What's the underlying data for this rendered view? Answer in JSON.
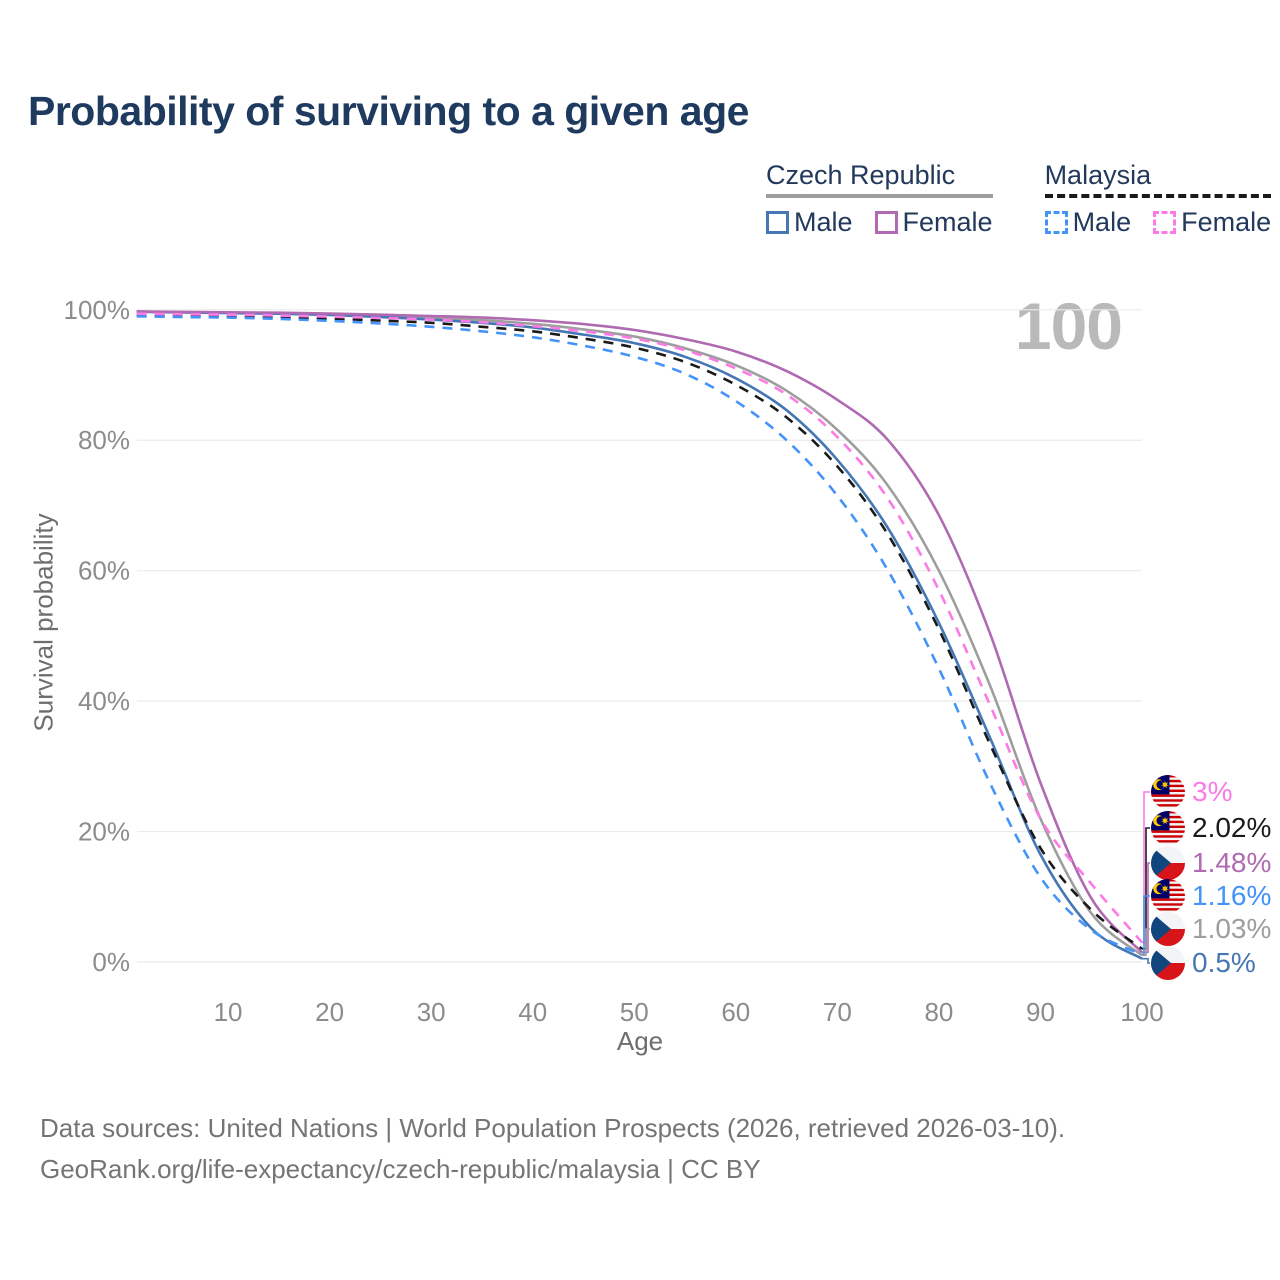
{
  "page": {
    "title": "Probability of surviving to a given age",
    "title_color": "#1e3a5f"
  },
  "legend": {
    "groups": [
      {
        "label": "Czech Republic",
        "series_id": "cz_all",
        "items": [
          {
            "label": "Male",
            "series_id": "cz_male"
          },
          {
            "label": "Female",
            "series_id": "cz_female"
          }
        ]
      },
      {
        "label": "Malaysia",
        "series_id": "my_all",
        "items": [
          {
            "label": "Male",
            "series_id": "my_male"
          },
          {
            "label": "Female",
            "series_id": "my_female"
          }
        ]
      }
    ]
  },
  "chart_data": {
    "type": "line",
    "title": "Probability of surviving to a given age",
    "xlabel": "Age",
    "ylabel": "Survival probability",
    "xlim": [
      0,
      100
    ],
    "ylim": [
      0,
      100
    ],
    "grid": "horizontal",
    "legend_position": "top-right",
    "watermark_age": "100",
    "x_ticks": [
      {
        "v": 10,
        "label": "10"
      },
      {
        "v": 20,
        "label": "20"
      },
      {
        "v": 30,
        "label": "30"
      },
      {
        "v": 40,
        "label": "40"
      },
      {
        "v": 50,
        "label": "50"
      },
      {
        "v": 60,
        "label": "60"
      },
      {
        "v": 70,
        "label": "70"
      },
      {
        "v": 80,
        "label": "80"
      },
      {
        "v": 90,
        "label": "90"
      },
      {
        "v": 100,
        "label": "100"
      }
    ],
    "y_ticks": [
      {
        "v": 0,
        "label": "0%"
      },
      {
        "v": 20,
        "label": "20%"
      },
      {
        "v": 40,
        "label": "40%"
      },
      {
        "v": 60,
        "label": "60%"
      },
      {
        "v": 80,
        "label": "80%"
      },
      {
        "v": 100,
        "label": "100%"
      }
    ],
    "x": [
      1,
      5,
      10,
      15,
      20,
      25,
      30,
      35,
      40,
      45,
      50,
      55,
      60,
      65,
      70,
      75,
      80,
      85,
      90,
      95,
      100
    ],
    "series": [
      {
        "id": "cz_all",
        "name": "Czech Republic Both sexes",
        "country": "Czech Republic",
        "sex": "all",
        "color": "#9e9e9e",
        "dash": "solid",
        "values": [
          99.72,
          99.64,
          99.56,
          99.48,
          99.3,
          99.05,
          98.75,
          98.4,
          97.85,
          97.0,
          95.9,
          94.1,
          91.5,
          87.6,
          81.6,
          73.0,
          60.0,
          42.5,
          22.0,
          7.5,
          1.03
        ]
      },
      {
        "id": "cz_male",
        "name": "Czech Republic Male",
        "country": "Czech Republic",
        "sex": "male",
        "color": "#4577b4",
        "dash": "solid",
        "values": [
          99.7,
          99.6,
          99.5,
          99.4,
          99.2,
          98.9,
          98.5,
          98.0,
          97.3,
          96.2,
          94.9,
          92.8,
          89.5,
          84.6,
          77.0,
          66.5,
          52.0,
          34.5,
          16.5,
          5.2,
          0.5
        ]
      },
      {
        "id": "cz_female",
        "name": "Czech Republic Female",
        "country": "Czech Republic",
        "sex": "female",
        "color": "#b06ab2",
        "dash": "solid",
        "values": [
          99.75,
          99.68,
          99.62,
          99.55,
          99.42,
          99.25,
          99.05,
          98.8,
          98.4,
          97.8,
          96.9,
          95.5,
          93.6,
          90.6,
          86.2,
          80.0,
          68.5,
          50.5,
          27.5,
          9.8,
          1.48
        ]
      },
      {
        "id": "my_all",
        "name": "Malaysia Both sexes",
        "country": "Malaysia",
        "sex": "all",
        "color": "#1a1a1a",
        "dash": "dashed",
        "values": [
          99.2,
          99.1,
          99.0,
          98.85,
          98.65,
          98.35,
          98.0,
          97.4,
          96.7,
          95.6,
          94.2,
          92.0,
          88.5,
          83.5,
          76.0,
          65.5,
          51.0,
          33.5,
          17.5,
          8.0,
          2.02
        ]
      },
      {
        "id": "my_male",
        "name": "Malaysia Male",
        "country": "Malaysia",
        "sex": "male",
        "color": "#4493f8",
        "dash": "dashed",
        "values": [
          99.0,
          98.9,
          98.8,
          98.6,
          98.3,
          97.9,
          97.4,
          96.7,
          95.8,
          94.5,
          92.8,
          90.2,
          86.0,
          80.0,
          71.5,
          60.0,
          45.0,
          27.5,
          13.0,
          4.9,
          1.16
        ]
      },
      {
        "id": "my_female",
        "name": "Malaysia Female",
        "country": "Malaysia",
        "sex": "female",
        "color": "#fb7ae6",
        "dash": "dashed",
        "values": [
          99.4,
          99.32,
          99.25,
          99.12,
          98.95,
          98.75,
          98.5,
          98.1,
          97.5,
          96.7,
          95.6,
          93.8,
          91.0,
          87.0,
          80.5,
          71.0,
          57.0,
          39.5,
          22.0,
          12.0,
          3.0
        ]
      }
    ],
    "end_labels": [
      {
        "flag": "malaysia",
        "text": "3%",
        "value": 3.0,
        "series_id": "my_female",
        "color": "#fb7ae6"
      },
      {
        "flag": "malaysia",
        "text": "2.02%",
        "value": 2.02,
        "series_id": "my_all",
        "color": "#1a1a1a"
      },
      {
        "flag": "czech-republic",
        "text": "1.48%",
        "value": 1.48,
        "series_id": "cz_female",
        "color": "#b06ab2"
      },
      {
        "flag": "malaysia",
        "text": "1.16%",
        "value": 1.16,
        "series_id": "my_male",
        "color": "#4493f8"
      },
      {
        "flag": "czech-republic",
        "text": "1.03%",
        "value": 1.03,
        "series_id": "cz_all",
        "color": "#9e9e9e"
      },
      {
        "flag": "czech-republic",
        "text": "0.5%",
        "value": 0.5,
        "series_id": "cz_male",
        "color": "#4577b4"
      }
    ]
  },
  "footer": {
    "line1": "Data sources: United Nations | World Population Prospects (2026, retrieved 2026-03-10).",
    "line2": "GeoRank.org/life-expectancy/czech-republic/malaysia | CC BY"
  }
}
